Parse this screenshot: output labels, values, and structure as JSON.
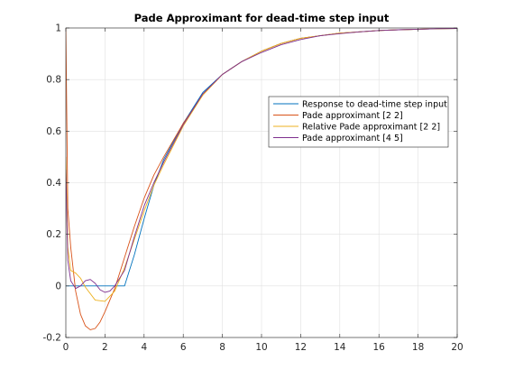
{
  "chart_data": {
    "type": "line",
    "title": "Pade Approximant for dead-time step input",
    "xlabel": "",
    "ylabel": "",
    "xlim": [
      0,
      20
    ],
    "ylim": [
      -0.2,
      1
    ],
    "xticks": [
      0,
      2,
      4,
      6,
      8,
      10,
      12,
      14,
      16,
      18,
      20
    ],
    "yticks": [
      -0.2,
      0,
      0.2,
      0.4,
      0.6,
      0.8,
      1
    ],
    "xtick_labels": [
      "0",
      "2",
      "4",
      "6",
      "8",
      "10",
      "12",
      "14",
      "16",
      "18",
      "20"
    ],
    "ytick_labels": [
      "-0.2",
      "0",
      "0.2",
      "0.4",
      "0.6",
      "0.8",
      "1"
    ],
    "grid": true,
    "legend_position": "top-right",
    "series": [
      {
        "name": "Response to dead-time step input",
        "color": "#0072BD",
        "x": [
          0,
          0.5,
          1,
          1.5,
          2,
          2.5,
          3,
          3.5,
          4,
          4.5,
          5,
          6,
          7,
          8,
          9,
          10,
          11,
          12,
          13,
          14,
          15,
          16,
          17,
          18,
          19,
          20
        ],
        "y": [
          0,
          0,
          0,
          0,
          0,
          0,
          0,
          0.12,
          0.26,
          0.39,
          0.49,
          0.63,
          0.75,
          0.82,
          0.87,
          0.91,
          0.94,
          0.96,
          0.97,
          0.98,
          0.985,
          0.99,
          0.993,
          0.995,
          0.997,
          0.998
        ]
      },
      {
        "name": "Pade approximant [2 2]",
        "color": "#D95319",
        "x": [
          0,
          0.1,
          0.25,
          0.5,
          0.75,
          1,
          1.25,
          1.5,
          1.75,
          2,
          2.5,
          3,
          3.5,
          4,
          4.5,
          5,
          6,
          7,
          8,
          9,
          10,
          11,
          12,
          13,
          14,
          15,
          16,
          17,
          18,
          19,
          20
        ],
        "y": [
          1,
          0.3,
          0.15,
          -0.02,
          -0.11,
          -0.155,
          -0.17,
          -0.165,
          -0.14,
          -0.1,
          -0.01,
          0.11,
          0.23,
          0.34,
          0.43,
          0.5,
          0.63,
          0.74,
          0.82,
          0.87,
          0.91,
          0.94,
          0.96,
          0.97,
          0.98,
          0.985,
          0.99,
          0.993,
          0.995,
          0.997,
          0.998
        ]
      },
      {
        "name": "Relative Pade approximant [2 2]",
        "color": "#EDB120",
        "x": [
          0,
          0.1,
          0.25,
          0.5,
          0.75,
          1,
          1.5,
          2,
          2.5,
          3,
          3.5,
          4,
          4.5,
          5,
          6,
          7,
          8,
          9,
          10,
          11,
          12,
          13,
          14,
          15,
          16,
          17,
          18,
          19,
          20
        ],
        "y": [
          0.5,
          0.15,
          0.06,
          0.05,
          0.03,
          -0.005,
          -0.055,
          -0.06,
          -0.02,
          0.07,
          0.18,
          0.29,
          0.39,
          0.47,
          0.62,
          0.74,
          0.82,
          0.87,
          0.91,
          0.94,
          0.96,
          0.97,
          0.98,
          0.985,
          0.99,
          0.993,
          0.995,
          0.997,
          0.998
        ]
      },
      {
        "name": "Pade approximant [4 5]",
        "color": "#7E2F8E",
        "x": [
          0,
          0.1,
          0.25,
          0.5,
          0.75,
          1,
          1.25,
          1.5,
          1.75,
          2,
          2.25,
          2.5,
          3,
          3.5,
          4,
          4.5,
          5,
          6,
          7,
          8,
          9,
          10,
          11,
          12,
          13,
          14,
          15,
          16,
          17,
          18,
          19,
          20
        ],
        "y": [
          0.45,
          0.1,
          0.02,
          -0.01,
          0.0,
          0.02,
          0.025,
          0.01,
          -0.015,
          -0.025,
          -0.02,
          0.0,
          0.06,
          0.19,
          0.31,
          0.4,
          0.48,
          0.625,
          0.745,
          0.82,
          0.87,
          0.905,
          0.935,
          0.955,
          0.97,
          0.978,
          0.985,
          0.99,
          0.993,
          0.995,
          0.997,
          0.998
        ]
      }
    ]
  }
}
